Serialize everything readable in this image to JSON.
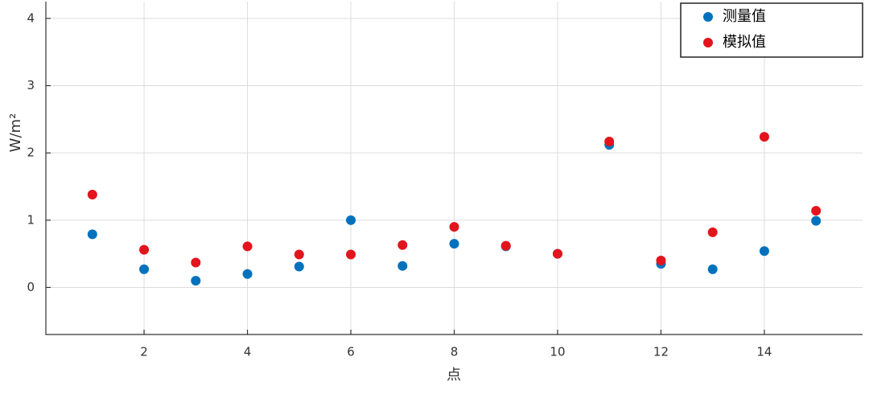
{
  "chart_data": {
    "type": "scatter",
    "x_label": "点",
    "y_label": "W/m²",
    "x": [
      1,
      2,
      3,
      4,
      5,
      6,
      7,
      8,
      9,
      10,
      11,
      12,
      13,
      14,
      15
    ],
    "series": [
      {
        "name": "测量值",
        "color": "#0072bd",
        "values": [
          0.79,
          0.27,
          0.1,
          0.2,
          0.31,
          1.0,
          0.32,
          0.65,
          0.61,
          0.5,
          2.12,
          0.35,
          0.27,
          0.54,
          0.99
        ]
      },
      {
        "name": "模拟值",
        "color": "#e3141c",
        "values": [
          1.38,
          0.56,
          0.37,
          0.61,
          0.49,
          0.49,
          0.63,
          0.9,
          0.62,
          0.5,
          2.17,
          0.4,
          0.82,
          2.24,
          1.14
        ]
      }
    ],
    "xlim": [
      0.1,
      15.9
    ],
    "xticks": [
      2,
      4,
      6,
      8,
      10,
      12,
      14
    ],
    "ylim": [
      -0.7,
      4.25
    ],
    "yticks": [
      0,
      1,
      2,
      3,
      4
    ],
    "grid": true,
    "legend": "top-right"
  }
}
